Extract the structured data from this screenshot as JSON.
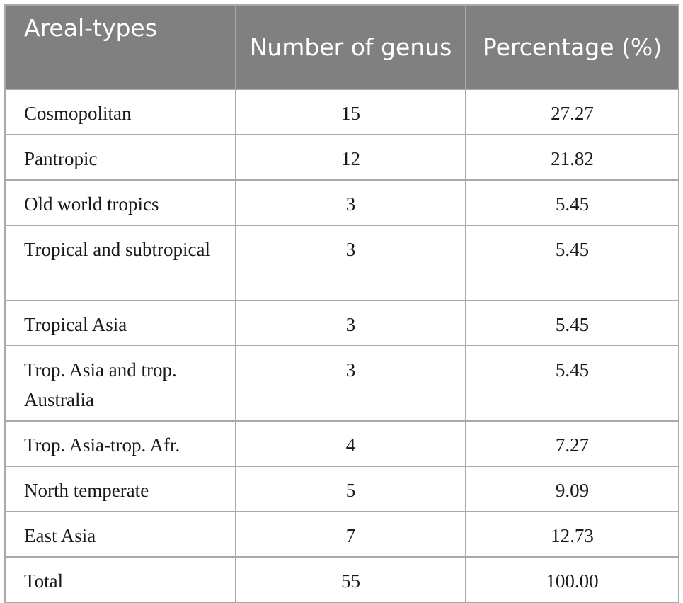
{
  "table": {
    "headers": [
      "Areal-types",
      "Number of genus",
      "Percentage (%)"
    ],
    "rows": [
      {
        "type": "Cosmopolitan",
        "genus": "15",
        "pct": "27.27"
      },
      {
        "type": "Pantropic",
        "genus": "12",
        "pct": "21.82"
      },
      {
        "type": "Old world tropics",
        "genus": "3",
        "pct": "5.45"
      },
      {
        "type": "Tropical and subtropical",
        "genus": "3",
        "pct": "5.45"
      },
      {
        "type": "Tropical Asia",
        "genus": "3",
        "pct": "5.45"
      },
      {
        "type": "Trop. Asia and trop. Australia",
        "genus": "3",
        "pct": "5.45"
      },
      {
        "type": "Trop. Asia-trop. Afr.",
        "genus": "4",
        "pct": "7.27"
      },
      {
        "type": "North temperate",
        "genus": "5",
        "pct": "9.09"
      },
      {
        "type": "East Asia",
        "genus": "7",
        "pct": "12.73"
      },
      {
        "type": "Total",
        "genus": "55",
        "pct": "100.00"
      }
    ]
  }
}
